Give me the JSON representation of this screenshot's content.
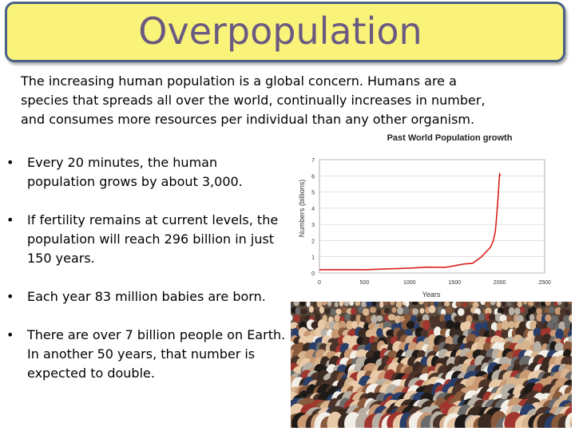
{
  "slide": {
    "title": "Overpopulation",
    "intro": "The increasing human population is a global concern.  Humans are a species that spreads all over the world, continually increases in number, and consumes more resources per individual than any other organism.",
    "bullets": [
      "Every 20 minutes, the human population grows by about 3,000.",
      "If fertility remains at current levels, the population will reach 296 billion in just 150 years.",
      "Each year 83 million babies are born.",
      "There are over 7 billion people on Earth.  In another 50 years, that number is expected to double."
    ],
    "bullet_glyph": "•",
    "colors": {
      "title_bg": "#f9f37a",
      "title_border": "#4a6186",
      "title_text": "#6a5a82",
      "line": "#d9201e"
    }
  },
  "chart_data": {
    "type": "line",
    "title": "Past World Population growth",
    "xlabel": "Years",
    "ylabel": "Numbers (billions)",
    "xlim": [
      0,
      2500
    ],
    "ylim": [
      0,
      7
    ],
    "xticks": [
      "0",
      "500",
      "1000",
      "1500",
      "2000",
      "2500"
    ],
    "yticks": [
      "0",
      "1",
      "2",
      "3",
      "4",
      "5",
      "6",
      "7"
    ],
    "grid": true,
    "x": [
      0,
      500,
      1000,
      1200,
      1400,
      1500,
      1600,
      1700,
      1750,
      1800,
      1850,
      1900,
      1930,
      1950,
      1960,
      1970,
      1980,
      1990,
      2000,
      2010
    ],
    "values": [
      0.2,
      0.2,
      0.3,
      0.36,
      0.35,
      0.45,
      0.55,
      0.6,
      0.8,
      1.0,
      1.3,
      1.6,
      2.0,
      2.5,
      3.0,
      3.7,
      4.4,
      5.3,
      6.1,
      6.0
    ]
  },
  "image": {
    "description_icon": "crowd-photo"
  }
}
